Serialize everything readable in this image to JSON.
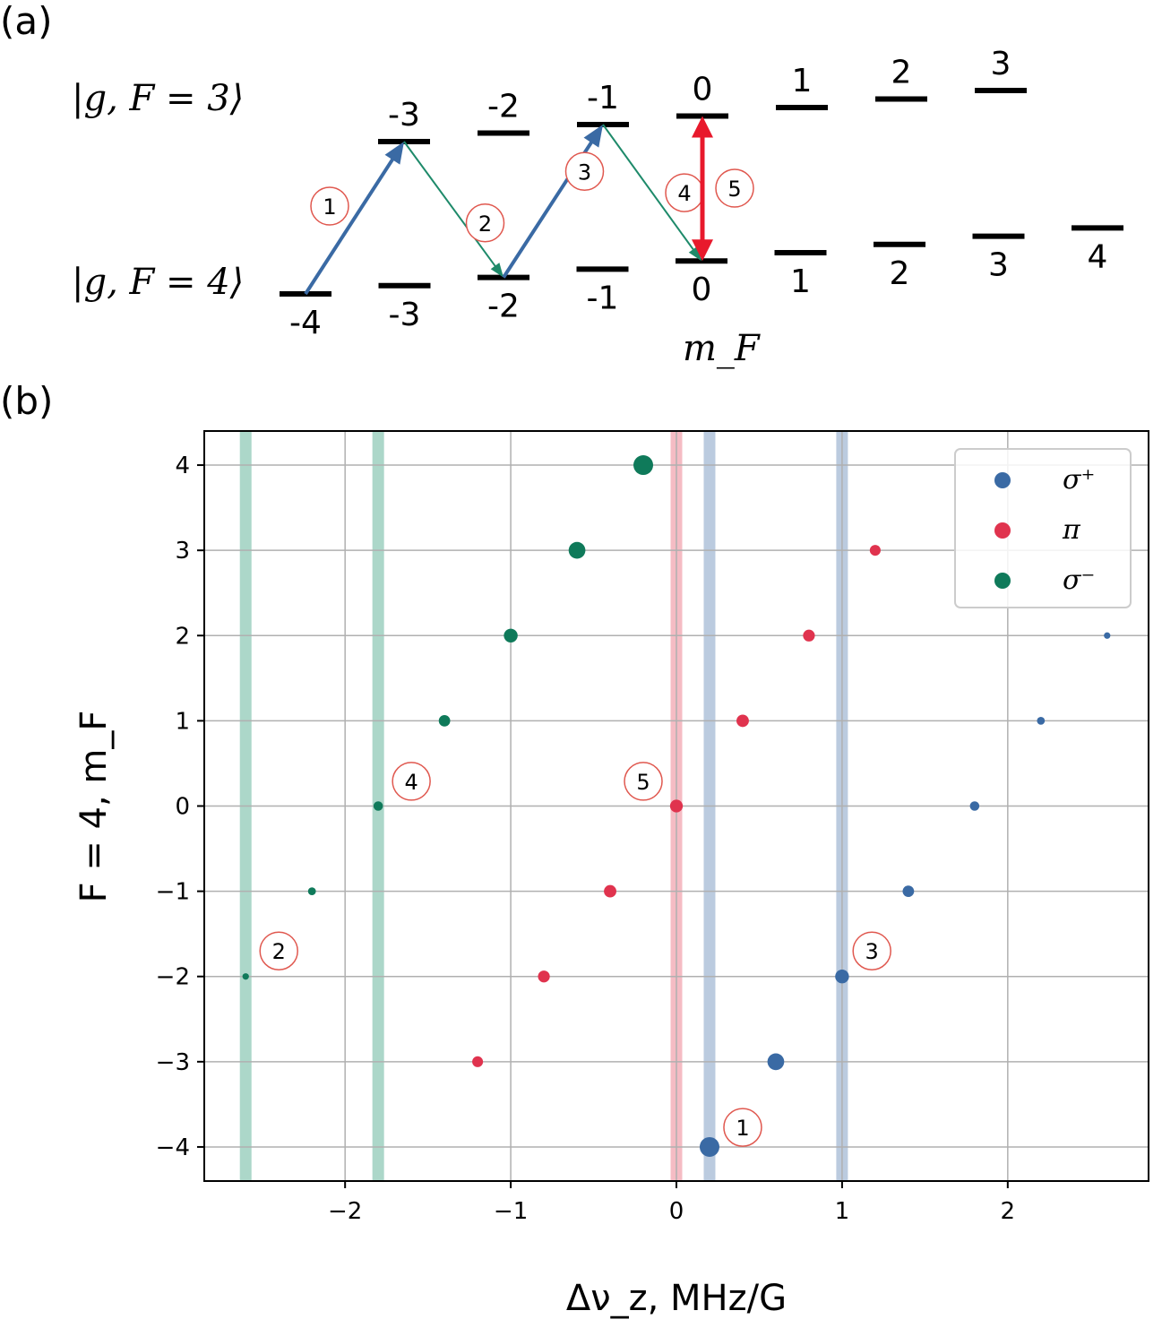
{
  "panel_a": {
    "label": "(a)",
    "state_F3": "|g, F = 3⟩",
    "state_F4": "|g, F = 4⟩",
    "axis_label": "m_F",
    "F3_levels": [
      "-3",
      "-2",
      "-1",
      "0",
      "1",
      "2",
      "3"
    ],
    "F4_levels": [
      "-4",
      "-3",
      "-2",
      "-1",
      "0",
      "1",
      "2",
      "3",
      "4"
    ],
    "steps": [
      {
        "label": "1",
        "from": "F=4, mF=-4",
        "to": "F=3, mF=-3",
        "polarization": "σ+"
      },
      {
        "label": "2",
        "from": "F=3, mF=-3",
        "to": "F=4, mF=-2",
        "polarization": "σ-"
      },
      {
        "label": "3",
        "from": "F=4, mF=-2",
        "to": "F=3, mF=-1",
        "polarization": "σ+"
      },
      {
        "label": "4",
        "from": "F=3, mF=-1",
        "to": "F=4, mF=0",
        "polarization": "σ-"
      },
      {
        "label": "5",
        "from": "F=4, mF=0",
        "to": "F=3, mF=0",
        "polarization": "π"
      }
    ],
    "colors": {
      "sigma_plus": "#3a6aa4",
      "sigma_minus": "#1e8a6a",
      "pi": "#e8192c",
      "step_circle": "#e0584f"
    }
  },
  "chart_data": {
    "label": "(b)",
    "type": "scatter",
    "xlabel": "Δν_z, MHz/G",
    "ylabel": "F = 4, m_F",
    "xlim": [
      -2.85,
      2.85
    ],
    "ylim": [
      -4.4,
      4.4
    ],
    "xticks": [
      -2,
      -1,
      0,
      1,
      2
    ],
    "xtick_labels": [
      "−2",
      "−1",
      "0",
      "1",
      "2"
    ],
    "yticks": [
      -4,
      -3,
      -2,
      -1,
      0,
      1,
      2,
      3,
      4
    ],
    "ytick_labels": [
      "−4",
      "−3",
      "−2",
      "−1",
      "0",
      "1",
      "2",
      "3",
      "4"
    ],
    "grid": true,
    "legend_position": "top-right",
    "series": [
      {
        "name": "σ+",
        "color": "#3a6aa4",
        "points": [
          [
            0.2,
            -4,
            1.0
          ],
          [
            0.6,
            -3,
            0.85
          ],
          [
            1.0,
            -2,
            0.7
          ],
          [
            1.4,
            -1,
            0.58
          ],
          [
            1.8,
            0,
            0.48
          ],
          [
            2.2,
            1,
            0.4
          ],
          [
            2.6,
            2,
            0.33
          ]
        ]
      },
      {
        "name": "π",
        "color": "#e0334e",
        "points": [
          [
            -1.2,
            -3,
            0.55
          ],
          [
            -0.8,
            -2,
            0.6
          ],
          [
            -0.4,
            -1,
            0.63
          ],
          [
            0.0,
            0,
            0.65
          ],
          [
            0.4,
            1,
            0.63
          ],
          [
            0.8,
            2,
            0.6
          ],
          [
            1.2,
            3,
            0.55
          ]
        ]
      },
      {
        "name": "σ−",
        "color": "#0f7a5a",
        "points": [
          [
            -2.6,
            -2,
            0.33
          ],
          [
            -2.2,
            -1,
            0.4
          ],
          [
            -1.8,
            0,
            0.48
          ],
          [
            -1.4,
            1,
            0.58
          ],
          [
            -1.0,
            2,
            0.7
          ],
          [
            -0.6,
            3,
            0.85
          ],
          [
            -0.2,
            4,
            1.0
          ]
        ]
      }
    ],
    "bands": [
      {
        "x": -2.6,
        "color": "#a8d5c6"
      },
      {
        "x": -1.8,
        "color": "#a8d5c6"
      },
      {
        "x": 0.0,
        "color": "#f4b8c1"
      },
      {
        "x": 0.2,
        "color": "#b7c8dd"
      },
      {
        "x": 1.0,
        "color": "#b7c8dd"
      }
    ],
    "annotations": [
      {
        "label": "1",
        "x": 0.4,
        "y": -3.77
      },
      {
        "label": "2",
        "x": -2.4,
        "y": -1.7
      },
      {
        "label": "3",
        "x": 1.18,
        "y": -1.7
      },
      {
        "label": "4",
        "x": -1.6,
        "y": 0.29
      },
      {
        "label": "5",
        "x": -0.2,
        "y": 0.29
      }
    ],
    "legend": [
      {
        "label": "σ⁺",
        "color": "#3a6aa4"
      },
      {
        "label": "π",
        "color": "#e0334e"
      },
      {
        "label": "σ⁻",
        "color": "#0f7a5a"
      }
    ]
  }
}
